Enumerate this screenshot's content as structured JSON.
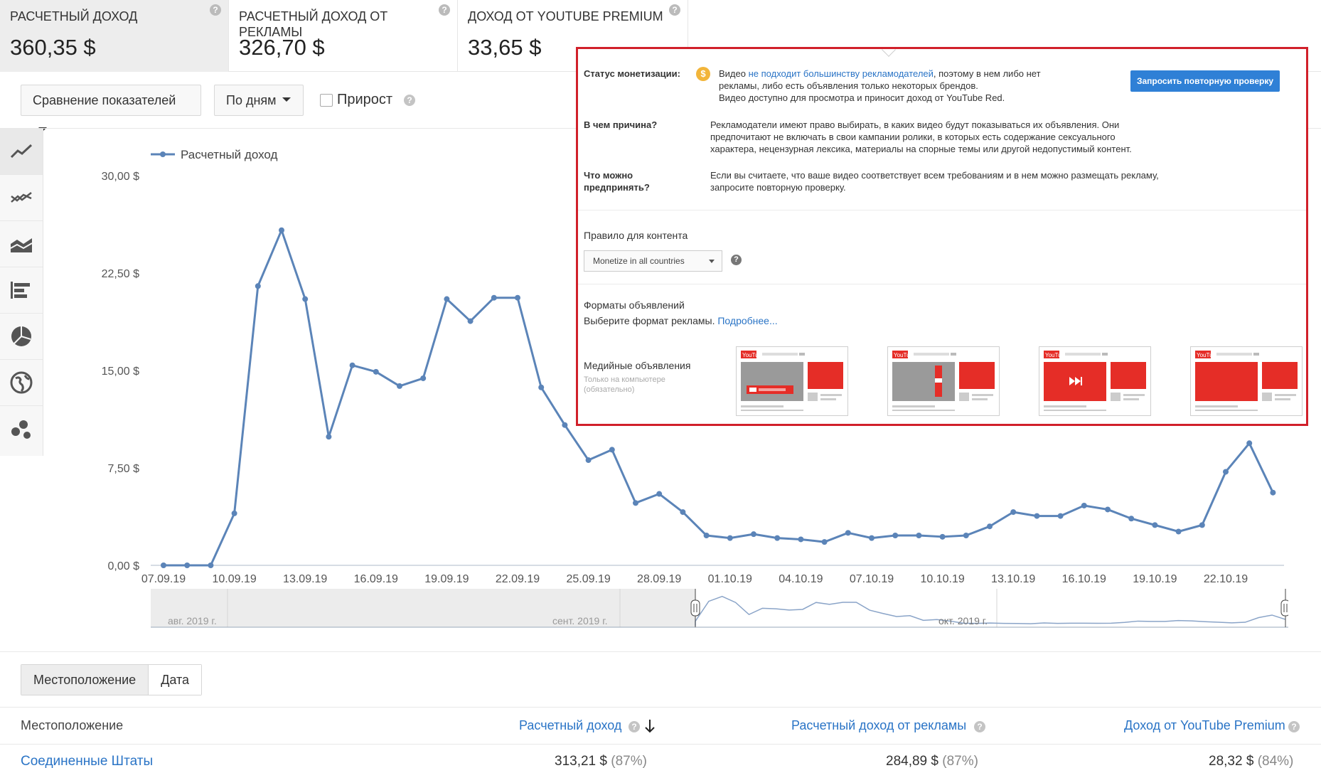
{
  "metrics": [
    {
      "label": "РАСЧЕТНЫЙ ДОХОД",
      "value": "360,35 $"
    },
    {
      "label": "РАСЧЕТНЫЙ ДОХОД ОТ РЕКЛАМЫ",
      "value": "326,70 $"
    },
    {
      "label": "ДОХОД ОТ YOUTUBE PREMIUM",
      "value": "33,65 $"
    }
  ],
  "controls": {
    "compare_label": "Сравнение показателей",
    "period_label": "По дням",
    "growth_label": "Прирост"
  },
  "sidebar_icons": [
    "line-chart-icon",
    "multi-line-chart-icon",
    "area-chart-icon",
    "bar-chart-icon",
    "pie-chart-icon",
    "globe-map-icon",
    "bubble-chart-icon"
  ],
  "chart_data": {
    "type": "line",
    "title": "",
    "xlabel": "",
    "ylabel": "",
    "ylim": [
      0,
      30
    ],
    "yticks": [
      "0,00 $",
      "7,50 $",
      "15,00 $",
      "22,50 $",
      "30,00 $"
    ],
    "ytick_values": [
      0,
      7.5,
      15,
      22.5,
      30
    ],
    "xticks": [
      "07.09.19",
      "10.09.19",
      "13.09.19",
      "16.09.19",
      "19.09.19",
      "22.09.19",
      "25.09.19",
      "28.09.19",
      "01.10.19",
      "04.10.19",
      "07.10.19",
      "10.10.19",
      "13.10.19",
      "16.10.19",
      "19.10.19",
      "22.10.19"
    ],
    "legend_position": "top-left",
    "series": [
      {
        "name": "Расчетный доход",
        "color": "#5b84b8",
        "values": [
          0.0,
          0.0,
          0.0,
          4.0,
          21.5,
          25.8,
          20.5,
          9.9,
          15.4,
          14.9,
          13.8,
          14.4,
          20.5,
          18.8,
          20.6,
          20.6,
          13.7,
          10.8,
          8.1,
          8.9,
          4.8,
          5.5,
          4.1,
          2.3,
          2.1,
          2.4,
          2.1,
          2.0,
          1.8,
          2.5,
          2.1,
          2.3,
          2.3,
          2.2,
          2.3,
          3.0,
          4.1,
          3.8,
          3.8,
          4.6,
          4.3,
          3.6,
          3.1,
          2.6,
          3.1,
          7.2,
          9.4,
          5.6
        ]
      }
    ]
  },
  "navigator": {
    "labels": [
      "авг. 2019 г.",
      "сент. 2019 г.",
      "окт. 2019 г."
    ]
  },
  "overlay": {
    "status_label": "Статус монетизации:",
    "status_prefix": "Видео",
    "status_link": "не подходит большинству рекламодателей",
    "status_suffix": ", поэтому в нем либо нет",
    "status_line2": "рекламы, либо есть объявления только некоторых брендов.",
    "status_line3": "Видео доступно для просмотра и приносит доход от YouTube Red.",
    "recheck_button": "Запросить повторную проверку",
    "reason_label": "В чем причина?",
    "reason_line1": "Рекламодатели имеют право выбирать, в каких видео будут показываться их объявления. Они",
    "reason_line2": "предпочитают не включать в свои кампании ролики, в которых есть содержание сексуального",
    "reason_line3": "характера, нецензурная лексика, материалы на спорные темы или другой недопустимый контент.",
    "action_label_1": "Что можно",
    "action_label_2": "предпринять?",
    "action_line1": "Если вы считаете, что ваше видео соответствует всем требованиям и в нем можно размещать рекламу,",
    "action_line2": "запросите повторную проверку.",
    "rule_label": "Правило для контента",
    "rule_select": "Monetize in all countries",
    "formats_label": "Форматы объявлений",
    "formats_hint": "Выберите формат рекламы.",
    "formats_link": "Подробнее...",
    "media_label": "Медийные объявления",
    "media_sub1": "Только на компьютере",
    "media_sub2": "(обязательно)",
    "thumb_logo": "YouTube"
  },
  "bottom": {
    "tabs": [
      "Местоположение",
      "Дата"
    ],
    "columns": [
      "Местоположение",
      "Расчетный доход",
      "Расчетный доход от рекламы",
      "Доход от YouTube Premium"
    ],
    "row": {
      "location": "Соединенные Штаты",
      "revenue": "313,21 $",
      "revenue_pct": "(87%)",
      "ad_revenue": "284,89 $",
      "ad_revenue_pct": "(87%)",
      "premium": "28,32 $",
      "premium_pct": "(84%)"
    }
  }
}
